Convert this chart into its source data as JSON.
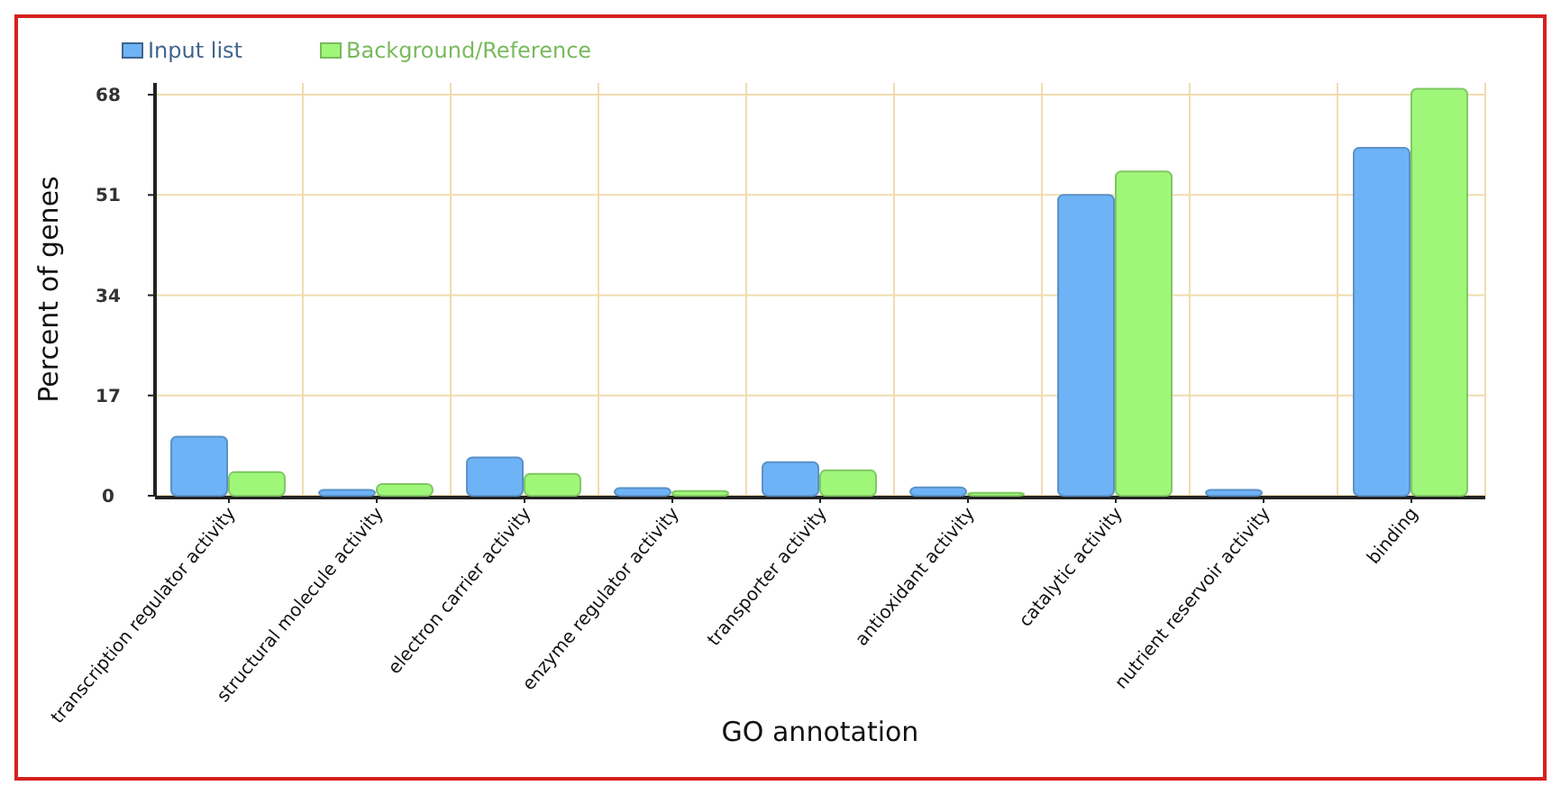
{
  "chart_data": {
    "type": "bar",
    "xlabel": "GO annotation",
    "ylabel": "Percent of genes",
    "categories": [
      "transcription regulator activity",
      "structural molecule activity",
      "electron carrier activity",
      "enzyme regulator activity",
      "transporter activity",
      "antioxidant activity",
      "catalytic activity",
      "nutrient reservoir activity",
      "binding"
    ],
    "series": [
      {
        "name": "Input list",
        "color": "#6fb3f7",
        "values": [
          10,
          1,
          6.5,
          1.3,
          5.7,
          1.4,
          51,
          1,
          59
        ]
      },
      {
        "name": "Background/Reference",
        "color": "#9ff77a",
        "values": [
          4,
          2,
          3.7,
          0.8,
          4.3,
          0.5,
          55,
          null,
          69
        ]
      }
    ],
    "ylim": [
      0,
      70
    ],
    "yticks": [
      0,
      17,
      34,
      51,
      68
    ],
    "grid": true,
    "legend": "top left"
  }
}
